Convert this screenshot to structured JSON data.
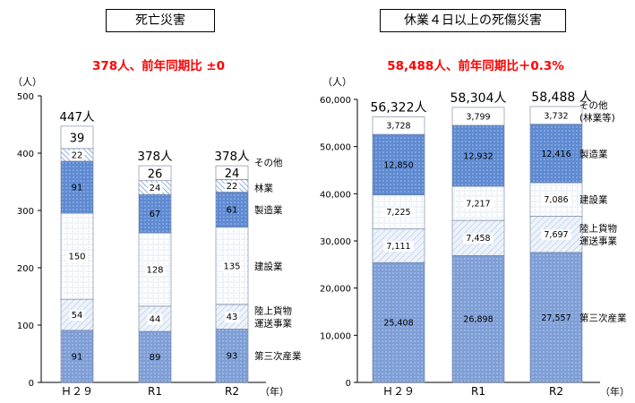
{
  "colors": {
    "accent_red": "#ff0000",
    "segment_first": "#8fa9dc",
    "segment_transport": "#dfe8f4",
    "segment_construction": "#ffffff",
    "segment_manufacturing": "#6a95d6",
    "segment_forestry": "#b7ccec",
    "segment_other": "#ffffff",
    "axis": "#000000",
    "grid": "#bfbfbf"
  },
  "chart_data": [
    {
      "type": "bar",
      "stacked": true,
      "title": "死亡災害",
      "subtitle": "378人、前年同期比 ±0",
      "ylabel": "（人）",
      "xunit": "（年）",
      "ylim": [
        0,
        500
      ],
      "yticks": [
        "0",
        "100",
        "200",
        "300",
        "400",
        "500"
      ],
      "grid": false,
      "categories": [
        "Ｈ２９",
        "R1",
        "R2"
      ],
      "totals": [
        "447人",
        "378人",
        "378人"
      ],
      "legend_position": "right",
      "series": [
        {
          "name": "第三次産業",
          "values": [
            91,
            89,
            93
          ],
          "color_key": "segment_first"
        },
        {
          "name": "陸上貨物\n運送事業",
          "values": [
            54,
            44,
            43
          ],
          "color_key": "segment_transport"
        },
        {
          "name": "建設業",
          "values": [
            150,
            128,
            135
          ],
          "color_key": "segment_construction"
        },
        {
          "name": "製造業",
          "values": [
            91,
            67,
            61
          ],
          "color_key": "segment_manufacturing"
        },
        {
          "name": "林業",
          "values": [
            22,
            24,
            22
          ],
          "color_key": "segment_forestry"
        },
        {
          "name": "その他",
          "values": [
            39,
            26,
            24
          ],
          "color_key": "segment_other"
        }
      ]
    },
    {
      "type": "bar",
      "stacked": true,
      "title": "休業４日以上の死傷災害",
      "subtitle": "58,488人、前年同期比＋0.3%",
      "ylabel": "（人）",
      "xunit": "（年）",
      "ylim": [
        0,
        60000
      ],
      "yticks": [
        "0",
        "10,000",
        "20,000",
        "30,000",
        "40,000",
        "50,000",
        "60,000"
      ],
      "grid": false,
      "categories": [
        "Ｈ２９",
        "R1",
        "R2"
      ],
      "totals": [
        "56,322人",
        "58,304人",
        "58,488 人"
      ],
      "legend_position": "right",
      "series": [
        {
          "name": "第三次産業",
          "values": [
            25408,
            26898,
            27557
          ],
          "labels": [
            "25,408",
            "26,898",
            "27,557"
          ],
          "color_key": "segment_first"
        },
        {
          "name": "陸上貨物\n運送事業",
          "values": [
            7111,
            7458,
            7697
          ],
          "labels": [
            "7,111",
            "7,458",
            "7,697"
          ],
          "color_key": "segment_transport"
        },
        {
          "name": "建設業",
          "values": [
            7225,
            7217,
            7086
          ],
          "labels": [
            "7,225",
            "7,217",
            "7,086"
          ],
          "color_key": "segment_construction"
        },
        {
          "name": "製造業",
          "values": [
            12850,
            12932,
            12416
          ],
          "labels": [
            "12,850",
            "12,932",
            "12,416"
          ],
          "color_key": "segment_manufacturing"
        },
        {
          "name": "その他\n(林業等)",
          "values": [
            3728,
            3799,
            3732
          ],
          "labels": [
            "3,728",
            "3,799",
            "3,732"
          ],
          "color_key": "segment_other"
        }
      ]
    }
  ]
}
